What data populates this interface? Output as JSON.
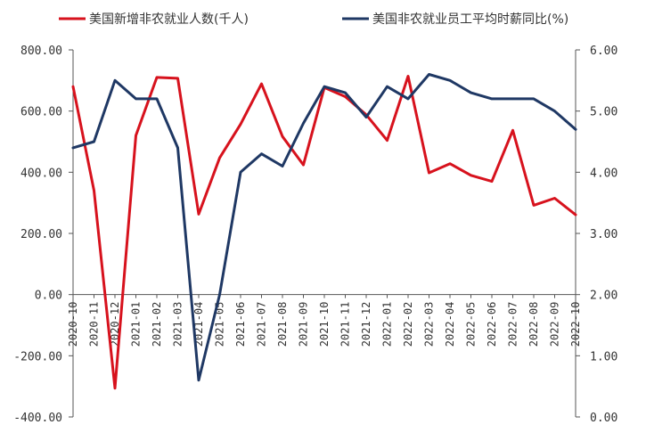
{
  "chart_data": {
    "type": "line",
    "categories": [
      "2020-10",
      "2020-11",
      "2020-12",
      "2021-01",
      "2021-02",
      "2021-03",
      "2021-04",
      "2021-05",
      "2021-06",
      "2021-07",
      "2021-08",
      "2021-09",
      "2021-10",
      "2021-11",
      "2021-12",
      "2022-01",
      "2022-02",
      "2022-03",
      "2022-04",
      "2022-05",
      "2022-06",
      "2022-07",
      "2022-08",
      "2022-09",
      "2022-10"
    ],
    "series": [
      {
        "name": "美国新增非农就业人数(千人)",
        "axis": "left",
        "color": "#d7121d",
        "values": [
          680,
          340,
          -306,
          520,
          710,
          707,
          263,
          447,
          557,
          689,
          517,
          424,
          677,
          647,
          588,
          504,
          714,
          398,
          428,
          390,
          370,
          537,
          292,
          315,
          261
        ]
      },
      {
        "name": "美国非农就业员工平均时薪同比(%)",
        "axis": "right",
        "color": "#1f3864",
        "values": [
          4.4,
          4.5,
          5.5,
          5.2,
          5.2,
          4.4,
          0.6,
          2.0,
          4.0,
          4.3,
          4.1,
          4.8,
          5.4,
          5.3,
          4.9,
          5.4,
          5.2,
          5.6,
          5.5,
          5.3,
          5.2,
          5.2,
          5.2,
          5.0,
          4.7
        ]
      }
    ],
    "y_left": {
      "range": [
        -400,
        800
      ],
      "ticks": [
        "800.00",
        "600.00",
        "400.00",
        "200.00",
        "0.00",
        "-200.00",
        "-400.00"
      ]
    },
    "y_right": {
      "range": [
        0,
        6
      ],
      "ticks": [
        "6.00",
        "5.00",
        "4.00",
        "3.00",
        "2.00",
        "1.00",
        "0.00"
      ]
    },
    "legend_position": "top",
    "grid": false
  }
}
